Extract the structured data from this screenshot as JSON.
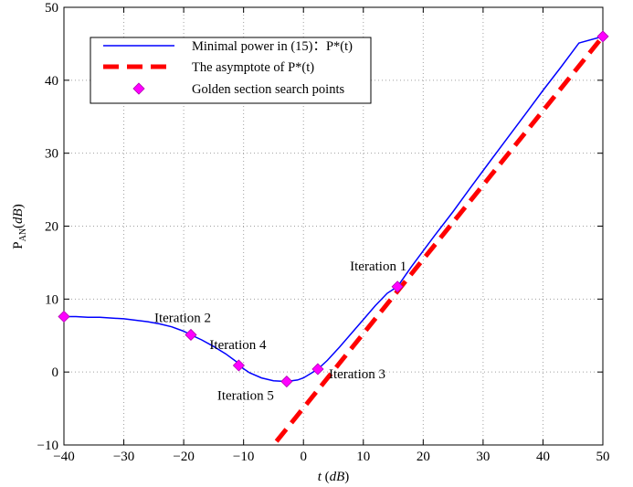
{
  "chart_data": {
    "type": "line",
    "xlabel": "t (dB)",
    "ylabel": "P_AN(dB)",
    "xlim": [
      -40,
      50
    ],
    "ylim": [
      -10,
      50
    ],
    "xticks": [
      -40,
      -30,
      -20,
      -10,
      0,
      10,
      20,
      30,
      40,
      50
    ],
    "yticks": [
      -10,
      0,
      10,
      20,
      30,
      40,
      50
    ],
    "grid": true,
    "legend_position": "top-left",
    "series": [
      {
        "name": "Minimal power in (15)：P*(t)",
        "kind": "line",
        "color": "#0000ff",
        "x": [
          -40,
          -38,
          -36,
          -34,
          -32,
          -30,
          -28,
          -26,
          -24,
          -22,
          -20,
          -18.8,
          -17,
          -15,
          -13,
          -11,
          -10.8,
          -9,
          -7,
          -5,
          -3,
          -2.8,
          -1,
          0,
          1,
          2.4,
          4,
          6,
          8,
          10,
          12,
          14,
          15.7,
          18,
          20,
          22,
          25,
          28,
          31,
          34,
          37,
          40,
          43,
          46,
          50
        ],
        "y": [
          7.6,
          7.6,
          7.5,
          7.5,
          7.4,
          7.3,
          7.1,
          6.9,
          6.6,
          6.2,
          5.6,
          5.1,
          4.4,
          3.5,
          2.5,
          1.3,
          0.9,
          -0.1,
          -0.8,
          -1.2,
          -1.3,
          -1.3,
          -1.1,
          -0.8,
          -0.3,
          0.4,
          1.6,
          3.4,
          5.3,
          7.2,
          9.1,
          10.8,
          11.7,
          14.4,
          16.6,
          18.8,
          22,
          25.4,
          28.7,
          32,
          35.3,
          38.6,
          41.8,
          45.1,
          46
        ]
      },
      {
        "name": "The asymptote of P*(t)",
        "kind": "dashed-line",
        "color": "#ff0000",
        "x": [
          -4.5,
          50
        ],
        "y": [
          -9.5,
          46
        ]
      },
      {
        "name": "Golden section search points",
        "kind": "markers",
        "color": "#ff00ff",
        "x": [
          -40,
          -18.8,
          -10.8,
          -2.8,
          2.4,
          15.7,
          50
        ],
        "y": [
          7.6,
          5.1,
          0.9,
          -1.3,
          0.4,
          11.7,
          46
        ]
      }
    ],
    "annotations": [
      {
        "text": "Iteration 1",
        "x": 15.7,
        "y": 11.7
      },
      {
        "text": "Iteration 2",
        "x": -18.8,
        "y": 5.1
      },
      {
        "text": "Iteration 3",
        "x": 2.4,
        "y": 0.4
      },
      {
        "text": "Iteration 4",
        "x": -10.8,
        "y": 0.9
      },
      {
        "text": "Iteration 5",
        "x": -2.8,
        "y": -1.3
      }
    ]
  }
}
